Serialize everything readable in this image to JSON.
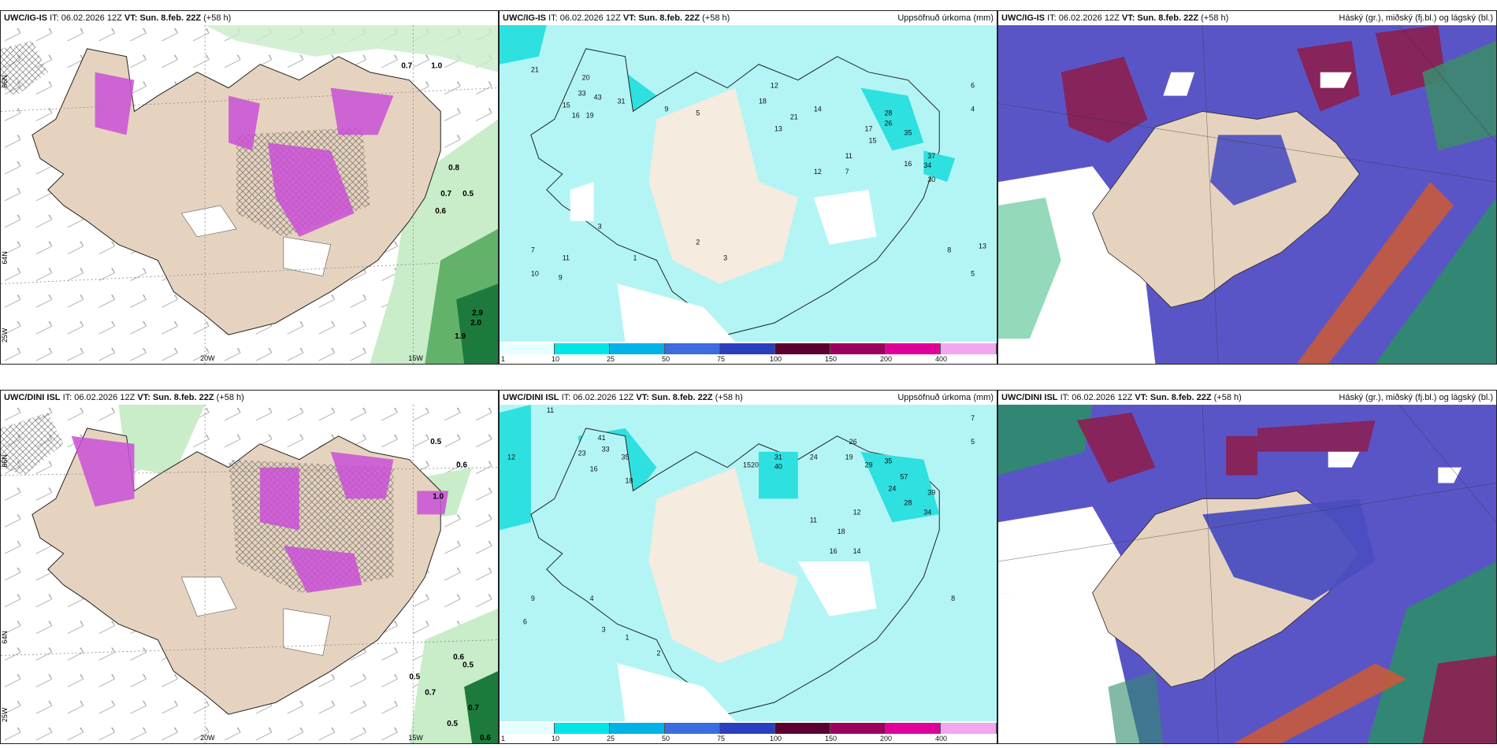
{
  "panels": {
    "top_left": {
      "title": "UWC/IG-IS",
      "it": "IT: 06.02.2026 12Z",
      "vt": "VT: Sun. 8.feb. 22Z",
      "lead": "(+58 h)",
      "right": ""
    },
    "top_mid": {
      "title": "UWC/IG-IS",
      "it": "IT: 06.02.2026 12Z",
      "vt": "VT: Sun. 8.feb. 22Z",
      "lead": "(+58 h)",
      "right": "Uppsöfnuð úrkoma (mm)"
    },
    "top_right": {
      "title": "UWC/IG-IS",
      "it": "IT: 06.02.2026 12Z",
      "vt": "VT: Sun. 8.feb. 22Z",
      "lead": "(+58 h)",
      "right": "Háský (gr.), miðský (fj.bl.) og lágský (bl.)"
    },
    "bot_left": {
      "title": "UWC/DINI ISL",
      "it": "IT: 06.02.2026 12Z",
      "vt": "VT: Sun. 8.feb. 22Z",
      "lead": "(+58 h)",
      "right": ""
    },
    "bot_mid": {
      "title": "UWC/DINI ISL",
      "it": "IT: 06.02.2026 12Z",
      "vt": "VT: Sun. 8.feb. 22Z",
      "lead": "(+58 h)",
      "right": "Uppsöfnuð úrkoma (mm)"
    },
    "bot_right": {
      "title": "UWC/DINI ISL",
      "it": "IT: 06.02.2026 12Z",
      "vt": "VT: Sun. 8.feb. 22Z",
      "lead": "(+58 h)",
      "right": "Háský (gr.), miðský (fj.bl.) og lágský (bl.)"
    }
  },
  "axis_labels": {
    "lon_20w": "20W",
    "lon_15w": "15W",
    "lat_66n": "66N",
    "lat_64n": "64N",
    "lat_25w": "25W"
  },
  "colorbar": {
    "ticks": [
      "1",
      "10",
      "25",
      "50",
      "75",
      "100",
      "150",
      "200",
      "400"
    ],
    "colors": [
      "#e6ffff",
      "#00e5e5",
      "#00b2e5",
      "#3d6be0",
      "#2a3fbf",
      "#5c0030",
      "#9b005e",
      "#e0009a",
      "#f2a6f0"
    ]
  },
  "precip_labels_top": [
    "21",
    "20",
    "33",
    "43",
    "31",
    "15",
    "16",
    "19",
    "9",
    "5",
    "12",
    "18",
    "21",
    "13",
    "14",
    "28",
    "26",
    "17",
    "35",
    "37",
    "34",
    "30",
    "16",
    "15",
    "11",
    "12",
    "7",
    "6",
    "8",
    "5",
    "4",
    "2",
    "3",
    "1",
    "10",
    "9",
    "11",
    "13",
    "7",
    "3"
  ],
  "precip_labels_bottom": [
    "11",
    "12",
    "41",
    "23",
    "33",
    "35",
    "16",
    "18",
    "15",
    "20",
    "31",
    "40",
    "24",
    "26",
    "19",
    "29",
    "35",
    "57",
    "39",
    "24",
    "28",
    "34",
    "18",
    "14",
    "16",
    "12",
    "11",
    "7",
    "5",
    "8",
    "6",
    "9",
    "4",
    "3",
    "2",
    "1"
  ],
  "wind_values_top": [
    "0.7",
    "1.0",
    "2.9",
    "2.0",
    "1.9",
    "0.8",
    "0.5",
    "0.7",
    "0.6"
  ],
  "wind_values_bottom": [
    "0.5",
    "0.6",
    "1.0",
    "0.7",
    "0.5",
    "0.6",
    "0.5",
    "0.7",
    "0.5",
    "0.6"
  ],
  "colors": {
    "land": "#e6d3bf",
    "sea_precip": "#b3f5f5",
    "snow_pink": "#c94fd6",
    "green_light": "#c9ecc9",
    "green_dark": "#1d7a3d",
    "cloud_blue": "#4a4ec0",
    "cloud_red": "#8c1f4f"
  }
}
